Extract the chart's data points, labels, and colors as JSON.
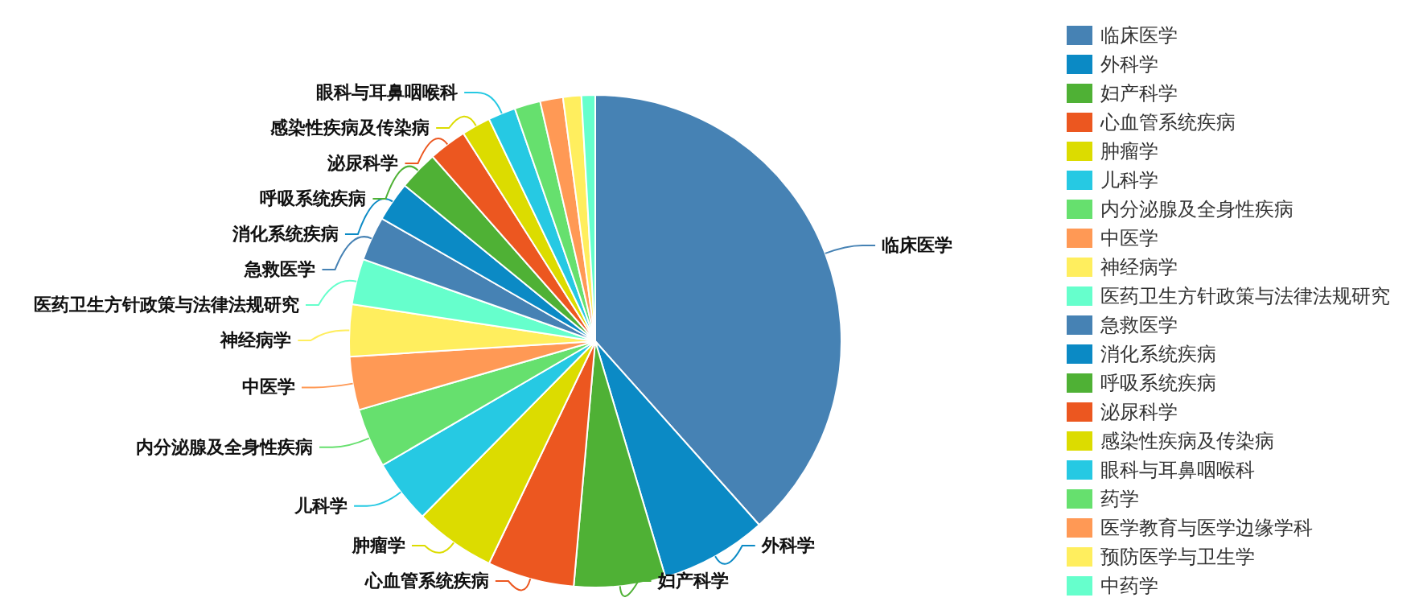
{
  "chart_data": {
    "type": "pie",
    "categories": [
      "临床医学",
      "外科学",
      "妇产科学",
      "心血管系统疾病",
      "肿瘤学",
      "儿科学",
      "内分泌腺及全身性疾病",
      "中医学",
      "神经病学",
      "医药卫生方针政策与法律法规研究",
      "急救医学",
      "消化系统疾病",
      "呼吸系统疾病",
      "泌尿科学",
      "感染性疾病及传染病",
      "眼科与耳鼻咽喉科",
      "药学",
      "医学教育与医学边缘学科",
      "预防医学与卫生学",
      "中药学"
    ],
    "values": [
      38.4,
      7.0,
      6.0,
      5.7,
      5.3,
      4.2,
      3.9,
      3.5,
      3.4,
      3.0,
      2.9,
      2.6,
      2.6,
      2.5,
      1.9,
      1.8,
      1.7,
      1.5,
      1.2,
      0.9
    ],
    "colors": [
      "#4682b4",
      "#0b8ac5",
      "#4fb135",
      "#ec5720",
      "#dcdc00",
      "#26c9e3",
      "#66e06e",
      "#ff9955",
      "#ffee5e",
      "#66ffcc",
      "#4682b4",
      "#0b8ac5",
      "#4fb135",
      "#ec5720",
      "#dcdc00",
      "#26c9e3",
      "#66e06e",
      "#ff9955",
      "#ffee5e",
      "#66ffcc"
    ],
    "legend": "right"
  }
}
